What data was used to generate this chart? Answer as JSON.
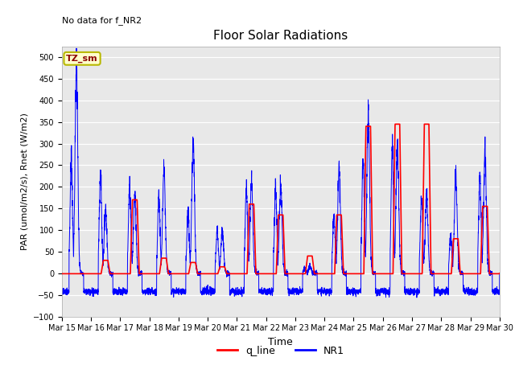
{
  "title": "Floor Solar Radiations",
  "subtitle": "No data for f_NR2",
  "xlabel": "Time",
  "ylabel": "PAR (umol/m2/s), Rnet (W/m2)",
  "ylim": [
    -100,
    525
  ],
  "yticks": [
    -100,
    -50,
    0,
    50,
    100,
    150,
    200,
    250,
    300,
    350,
    400,
    450,
    500
  ],
  "xtick_labels": [
    "Mar 15",
    "Mar 16",
    "Mar 17",
    "Mar 18",
    "Mar 19",
    "Mar 20",
    "Mar 21",
    "Mar 22",
    "Mar 23",
    "Mar 24",
    "Mar 25",
    "Mar 26",
    "Mar 27",
    "Mar 28",
    "Mar 29",
    "Mar 30"
  ],
  "legend_labels": [
    "q_line",
    "NR1"
  ],
  "legend_colors": [
    "red",
    "blue"
  ],
  "box_label": "TZ_sm",
  "box_color": "#ffffcc",
  "box_edge_color": "#b8b800",
  "bg_color": "#e8e8e8",
  "line_color_red": "red",
  "line_color_blue": "blue",
  "figsize": [
    6.4,
    4.8
  ],
  "dpi": 100,
  "title_fontsize": 11,
  "subtitle_fontsize": 8,
  "ylabel_fontsize": 8,
  "xlabel_fontsize": 9,
  "tick_fontsize": 7
}
